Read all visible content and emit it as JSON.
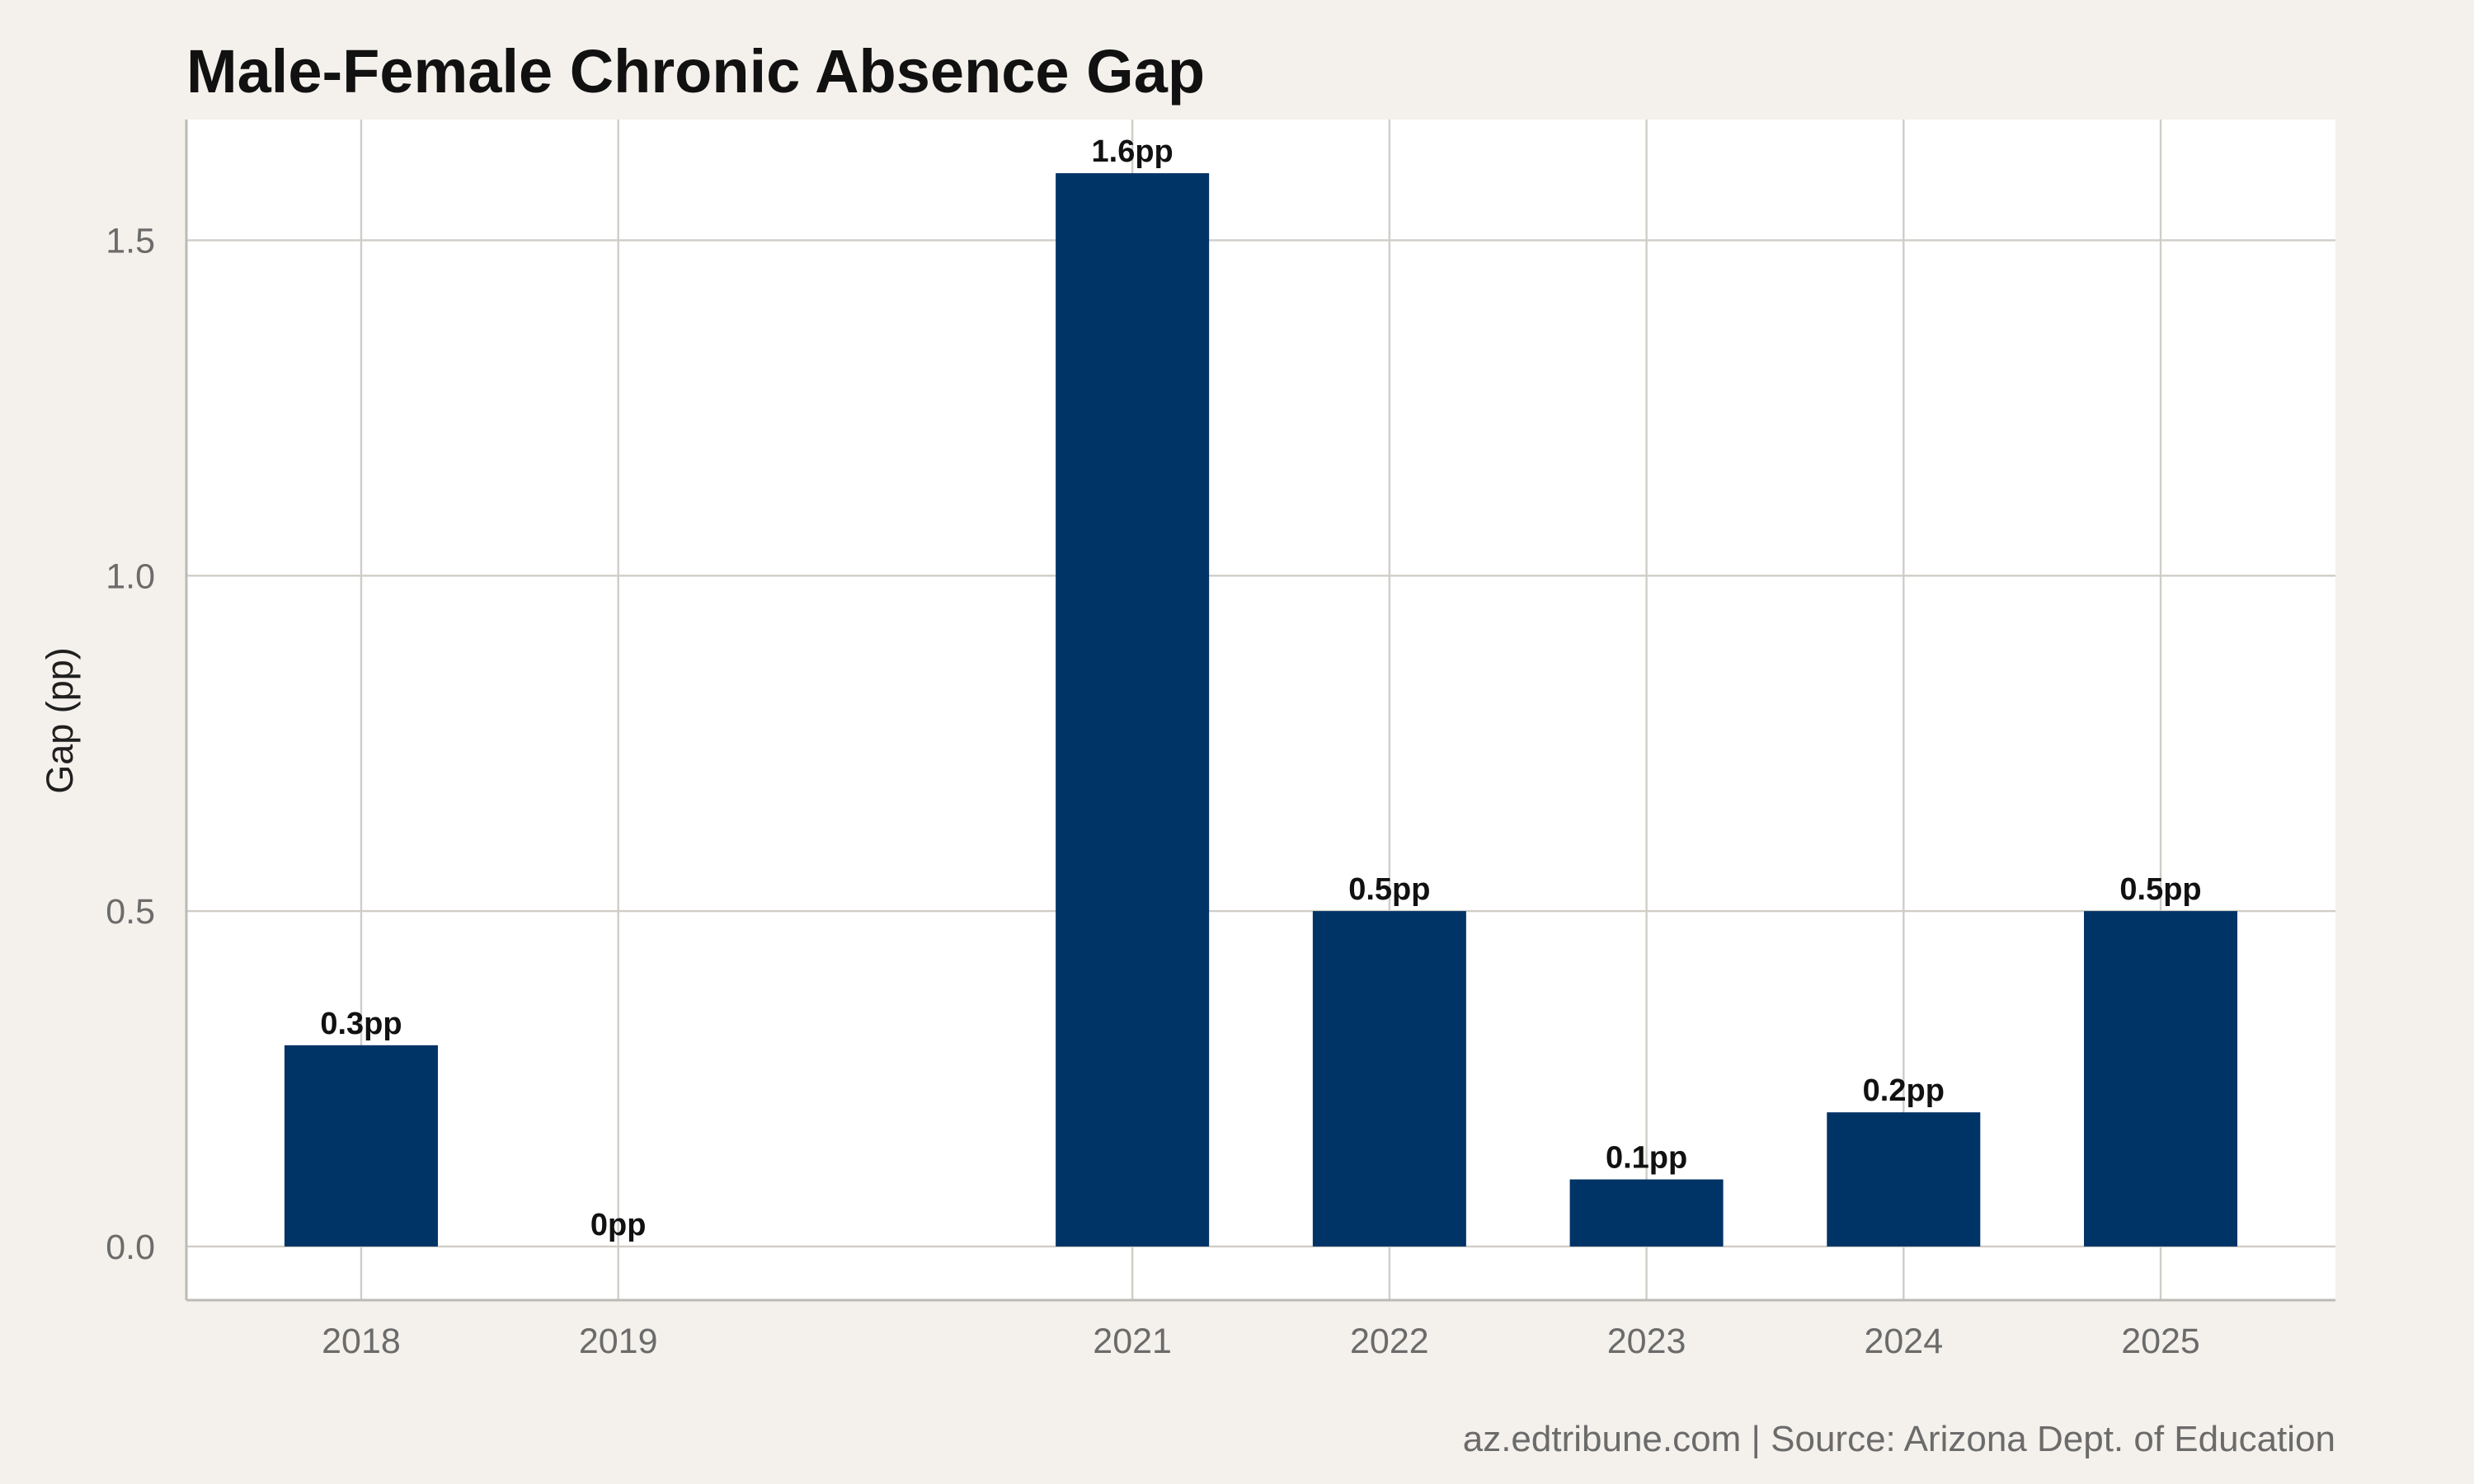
{
  "chart_data": {
    "type": "bar",
    "title": "Male-Female Chronic Absence Gap",
    "xlabel": "",
    "ylabel": "Gap (pp)",
    "categories": [
      "2018",
      "2019",
      "2021",
      "2022",
      "2023",
      "2024",
      "2025"
    ],
    "x": [
      2018,
      2019,
      2021,
      2022,
      2023,
      2024,
      2025
    ],
    "values": [
      0.3,
      0.0,
      1.6,
      0.5,
      0.1,
      0.2,
      0.5
    ],
    "data_labels": [
      "0.3pp",
      "0pp",
      "1.6pp",
      "0.5pp",
      "0.1pp",
      "0.2pp",
      "0.5pp"
    ],
    "xlim": [
      2017.32,
      2025.68
    ],
    "ylim": [
      -0.08,
      1.68
    ],
    "yticks": [
      0.0,
      0.5,
      1.0,
      1.5
    ],
    "ytick_labels": [
      "0.0",
      "0.5",
      "1.0",
      "1.5"
    ],
    "grid": true,
    "legend": "none",
    "caption": "az.edtribune.com | Source: Arizona Dept. of Education",
    "colors": {
      "bar": "#003366",
      "panel_background": "#ffffff",
      "page_background": "#f4f1ec",
      "grid": "#d0cdc7",
      "axis_line": "#bdbab4"
    }
  }
}
